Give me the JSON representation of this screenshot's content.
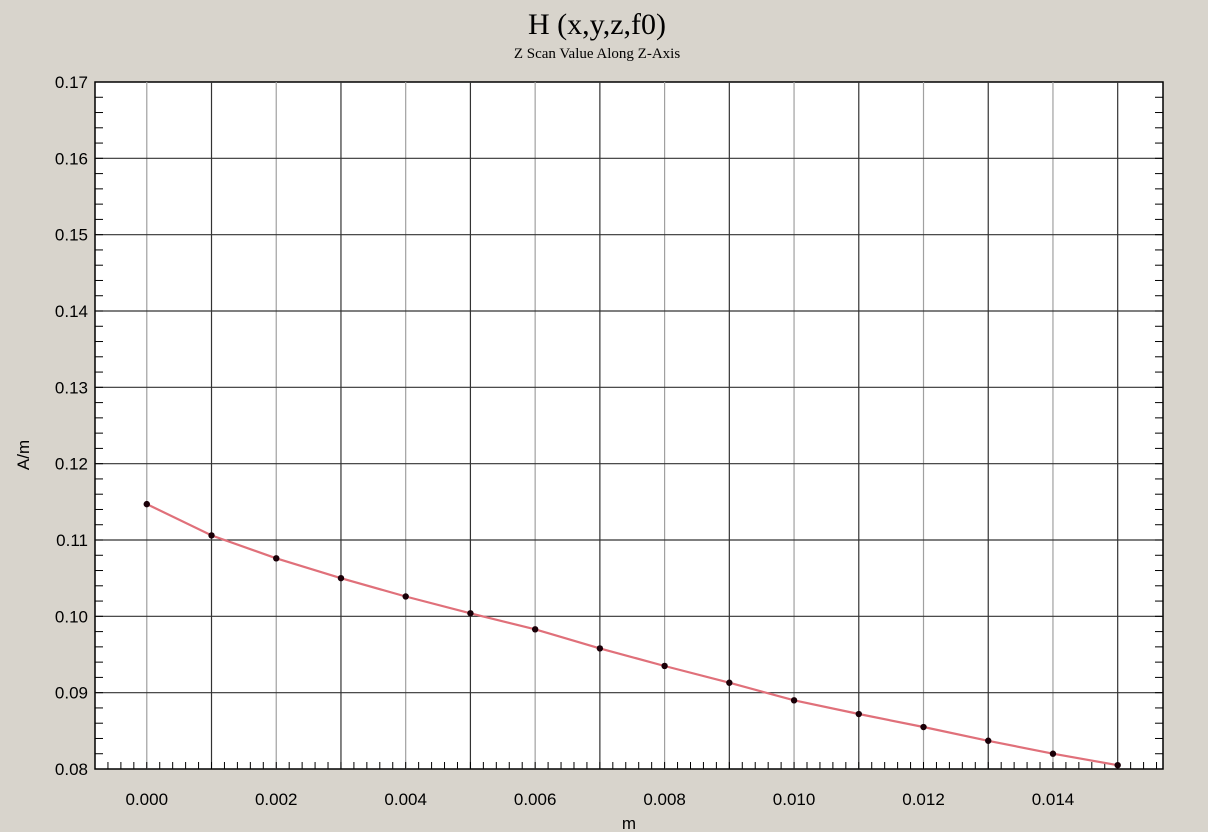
{
  "chart_data": {
    "type": "line",
    "title": "H (x,y,z,f0)",
    "subtitle": "Z Scan Value Along Z-Axis",
    "xlabel": "m",
    "ylabel": "A/m",
    "xlim": [
      -0.0008,
      0.0157
    ],
    "ylim": [
      0.08,
      0.17
    ],
    "x_ticks": [
      "0.000",
      "0.002",
      "0.004",
      "0.006",
      "0.008",
      "0.010",
      "0.012",
      "0.014"
    ],
    "y_ticks": [
      "0.08",
      "0.09",
      "0.10",
      "0.11",
      "0.12",
      "0.13",
      "0.14",
      "0.15",
      "0.16",
      "0.17"
    ],
    "grid": true,
    "legend": "none",
    "series": [
      {
        "color": "#e0707a",
        "marker_color": "#1a0008",
        "x": [
          0.0,
          0.001,
          0.002,
          0.003,
          0.004,
          0.005,
          0.006,
          0.007,
          0.008,
          0.009,
          0.01,
          0.011,
          0.012,
          0.013,
          0.014,
          0.015
        ],
        "y": [
          0.1147,
          0.1106,
          0.1076,
          0.105,
          0.1026,
          0.1004,
          0.0983,
          0.0958,
          0.0935,
          0.0913,
          0.089,
          0.0872,
          0.0855,
          0.0837,
          0.082,
          0.0805
        ]
      }
    ]
  }
}
